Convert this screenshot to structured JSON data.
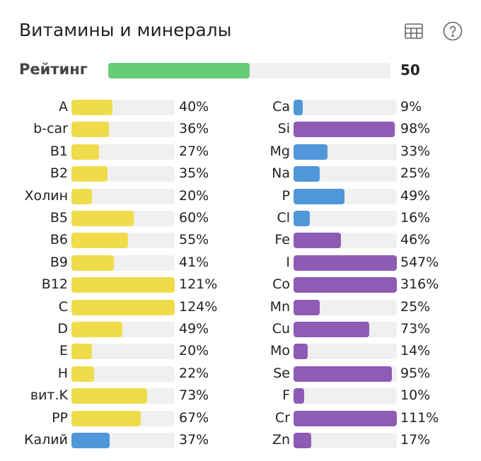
{
  "title": "Витамины и минералы",
  "icons": [
    "table-icon",
    "help-icon"
  ],
  "rating": {
    "label": "Рейтинг",
    "value": "50",
    "fraction": 0.5,
    "color": "#66cc77"
  },
  "colors": {
    "vitamin": "#f0dc4a",
    "mineral_blue": "#4f97d9",
    "mineral_purple": "#8e5bb5",
    "track": "#f0f0f0"
  },
  "left": [
    {
      "label": "A",
      "pct": 40,
      "text": "40%",
      "color": "#f0dc4a"
    },
    {
      "label": "b-car",
      "pct": 36,
      "text": "36%",
      "color": "#f0dc4a"
    },
    {
      "label": "B1",
      "pct": 27,
      "text": "27%",
      "color": "#f0dc4a"
    },
    {
      "label": "B2",
      "pct": 35,
      "text": "35%",
      "color": "#f0dc4a"
    },
    {
      "label": "Холин",
      "pct": 20,
      "text": "20%",
      "color": "#f0dc4a"
    },
    {
      "label": "B5",
      "pct": 60,
      "text": "60%",
      "color": "#f0dc4a"
    },
    {
      "label": "B6",
      "pct": 55,
      "text": "55%",
      "color": "#f0dc4a"
    },
    {
      "label": "B9",
      "pct": 41,
      "text": "41%",
      "color": "#f0dc4a"
    },
    {
      "label": "B12",
      "pct": 121,
      "text": "121%",
      "color": "#f0dc4a"
    },
    {
      "label": "C",
      "pct": 124,
      "text": "124%",
      "color": "#f0dc4a"
    },
    {
      "label": "D",
      "pct": 49,
      "text": "49%",
      "color": "#f0dc4a"
    },
    {
      "label": "E",
      "pct": 20,
      "text": "20%",
      "color": "#f0dc4a"
    },
    {
      "label": "H",
      "pct": 22,
      "text": "22%",
      "color": "#f0dc4a"
    },
    {
      "label": "вит.K",
      "pct": 73,
      "text": "73%",
      "color": "#f0dc4a"
    },
    {
      "label": "PP",
      "pct": 67,
      "text": "67%",
      "color": "#f0dc4a"
    },
    {
      "label": "Калий",
      "pct": 37,
      "text": "37%",
      "color": "#4f97d9"
    }
  ],
  "right": [
    {
      "label": "Ca",
      "pct": 9,
      "text": "9%",
      "color": "#4f97d9"
    },
    {
      "label": "Si",
      "pct": 98,
      "text": "98%",
      "color": "#8e5bb5"
    },
    {
      "label": "Mg",
      "pct": 33,
      "text": "33%",
      "color": "#4f97d9"
    },
    {
      "label": "Na",
      "pct": 25,
      "text": "25%",
      "color": "#4f97d9"
    },
    {
      "label": "P",
      "pct": 49,
      "text": "49%",
      "color": "#4f97d9"
    },
    {
      "label": "Cl",
      "pct": 16,
      "text": "16%",
      "color": "#4f97d9"
    },
    {
      "label": "Fe",
      "pct": 46,
      "text": "46%",
      "color": "#8e5bb5"
    },
    {
      "label": "I",
      "pct": 547,
      "text": "547%",
      "color": "#8e5bb5"
    },
    {
      "label": "Co",
      "pct": 316,
      "text": "316%",
      "color": "#8e5bb5"
    },
    {
      "label": "Mn",
      "pct": 25,
      "text": "25%",
      "color": "#8e5bb5"
    },
    {
      "label": "Cu",
      "pct": 73,
      "text": "73%",
      "color": "#8e5bb5"
    },
    {
      "label": "Mo",
      "pct": 14,
      "text": "14%",
      "color": "#8e5bb5"
    },
    {
      "label": "Se",
      "pct": 95,
      "text": "95%",
      "color": "#8e5bb5"
    },
    {
      "label": "F",
      "pct": 10,
      "text": "10%",
      "color": "#8e5bb5"
    },
    {
      "label": "Cr",
      "pct": 111,
      "text": "111%",
      "color": "#8e5bb5"
    },
    {
      "label": "Zn",
      "pct": 17,
      "text": "17%",
      "color": "#8e5bb5"
    }
  ]
}
